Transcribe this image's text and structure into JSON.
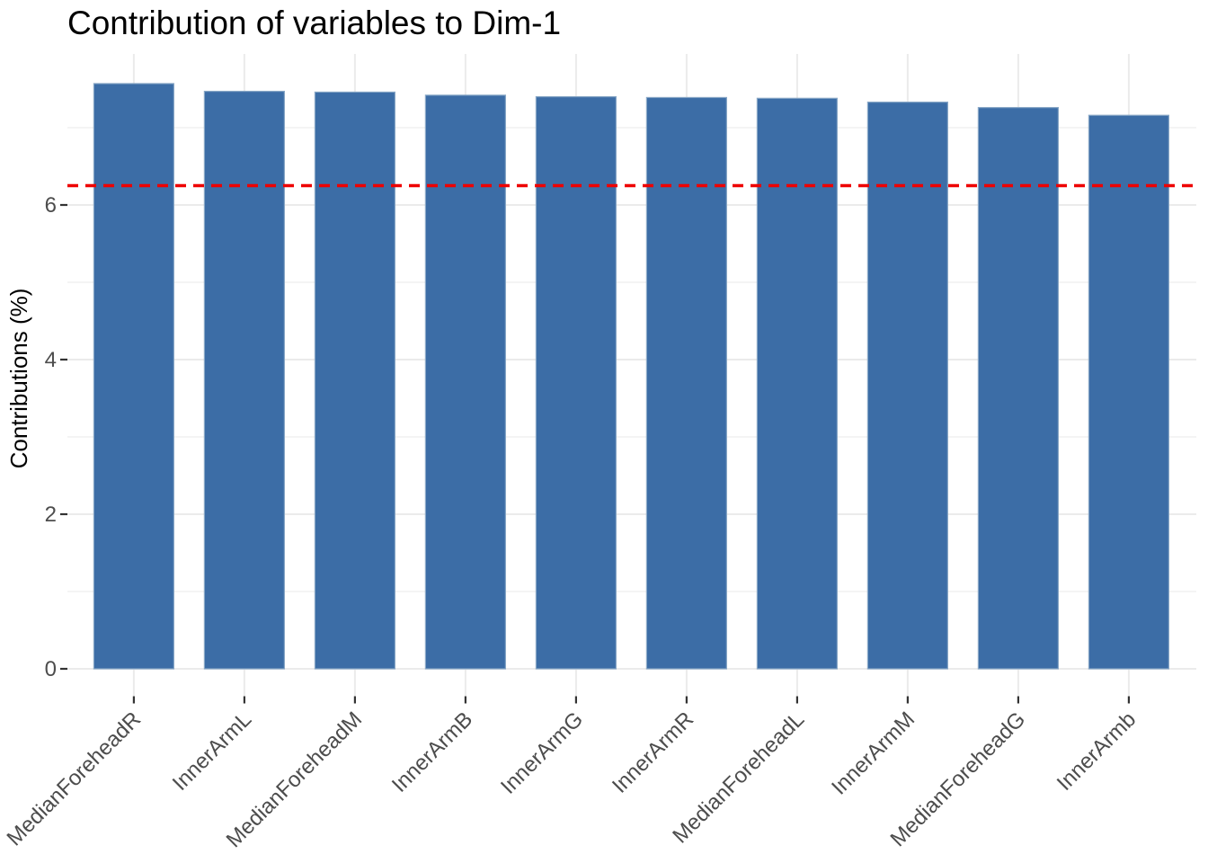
{
  "chart_data": {
    "type": "bar",
    "title": "Contribution of variables to Dim-1",
    "xlabel": "",
    "ylabel": "Contributions (%)",
    "categories": [
      "MedianForeheadR",
      "InnerArmL",
      "MedianForeheadM",
      "InnerArmB",
      "InnerArmG",
      "InnerArmR",
      "MedianForeheadL",
      "InnerArmM",
      "MedianForeheadG",
      "InnerArmb"
    ],
    "values": [
      7.57,
      7.47,
      7.46,
      7.42,
      7.4,
      7.39,
      7.38,
      7.33,
      7.26,
      7.16
    ],
    "reference_line": 6.25,
    "y_ticks": [
      0,
      2,
      4,
      6
    ],
    "y_minor_ticks": [
      1,
      3,
      5,
      7
    ],
    "ylim": [
      0,
      7.95
    ],
    "grid": true,
    "legend": "none",
    "x_label_angle": 45,
    "colors": {
      "bar_fill": "#3C6DA6",
      "bar_edge": "#88A7C6",
      "reference_line": "#EE0000",
      "grid_major": "#EBEBEB",
      "grid_minor": "#F0F0F0",
      "axis_text": "#4D4D4D",
      "tick_mark": "#333333",
      "title_text": "#000000"
    }
  }
}
